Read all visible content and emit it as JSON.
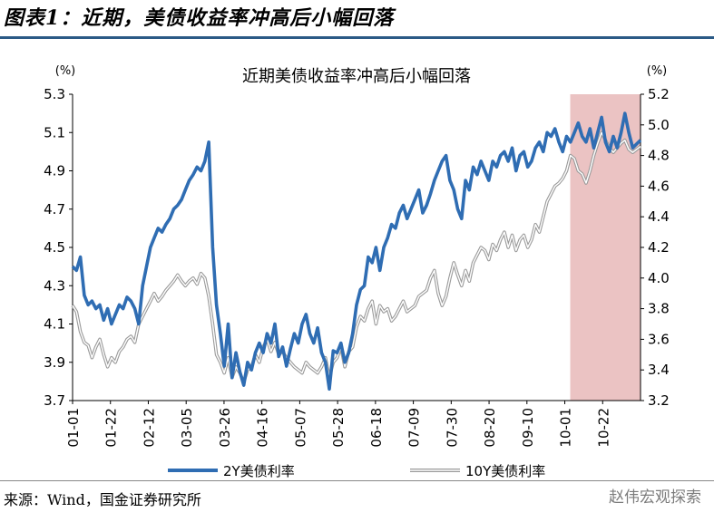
{
  "figure_title": "图表1：近期，美债收益率冲高后小幅回落",
  "source": "来源：Wind，国金证券研究所",
  "watermark": "赵伟宏观探索",
  "colors": {
    "series_2y": "#2f6db3",
    "series_10y": "#9a9a9a",
    "highlight": "#e8b9b9",
    "title_rule": "#2b5a86"
  },
  "chart_data": {
    "type": "line",
    "title": "近期美债收益率冲高后小幅回落",
    "left_axis": {
      "unit": "(%)",
      "ylim": [
        3.7,
        5.3
      ],
      "ticks": [
        "5.3",
        "5.1",
        "4.9",
        "4.7",
        "4.5",
        "4.3",
        "4.1",
        "3.9",
        "3.7"
      ]
    },
    "right_axis": {
      "unit": "(%)",
      "ylim": [
        3.2,
        5.2
      ],
      "ticks": [
        "5.2",
        "5.0",
        "4.8",
        "4.6",
        "4.4",
        "4.2",
        "4.0",
        "3.8",
        "3.6",
        "3.4",
        "3.2"
      ]
    },
    "x_ticks": [
      "01-01",
      "01-22",
      "02-12",
      "03-05",
      "03-26",
      "04-16",
      "05-07",
      "05-28",
      "06-18",
      "07-09",
      "07-30",
      "08-20",
      "09-10",
      "10-01",
      "10-22"
    ],
    "highlight": {
      "from": "10-01",
      "to": "10-31"
    },
    "legend_position": "bottom",
    "series": [
      {
        "name": "2Y美债利率",
        "axis": "left",
        "values": [
          4.4,
          4.38,
          4.45,
          4.25,
          4.2,
          4.22,
          4.18,
          4.2,
          4.12,
          4.18,
          4.1,
          4.15,
          4.2,
          4.18,
          4.24,
          4.22,
          4.18,
          4.1,
          4.3,
          4.4,
          4.5,
          4.55,
          4.6,
          4.58,
          4.62,
          4.65,
          4.7,
          4.72,
          4.75,
          4.8,
          4.85,
          4.88,
          4.92,
          4.9,
          4.95,
          5.05,
          4.5,
          4.2,
          4.05,
          3.88,
          4.1,
          3.82,
          3.95,
          3.85,
          3.78,
          3.9,
          3.86,
          3.95,
          4.0,
          3.95,
          4.05,
          4.0,
          4.1,
          3.93,
          3.98,
          3.88,
          3.97,
          4.05,
          4.0,
          4.1,
          4.15,
          4.05,
          4.0,
          4.08,
          3.95,
          3.9,
          3.76,
          3.96,
          3.95,
          4.0,
          3.9,
          3.95,
          4.05,
          4.2,
          4.28,
          4.3,
          4.45,
          4.42,
          4.5,
          4.38,
          4.5,
          4.55,
          4.62,
          4.6,
          4.68,
          4.72,
          4.65,
          4.7,
          4.75,
          4.8,
          4.68,
          4.72,
          4.78,
          4.85,
          4.9,
          4.95,
          4.98,
          4.85,
          4.8,
          4.7,
          4.65,
          4.85,
          4.8,
          4.92,
          4.88,
          4.95,
          4.9,
          4.85,
          4.95,
          4.92,
          4.98,
          5.0,
          4.95,
          5.02,
          4.9,
          4.98,
          5.0,
          4.92,
          4.95,
          5.02,
          5.05,
          5.0,
          5.1,
          5.08,
          5.12,
          5.05,
          5.0,
          5.08,
          5.05,
          5.1,
          5.15,
          5.08,
          5.05,
          5.12,
          5.02,
          5.1,
          5.18,
          5.05,
          5.0,
          5.08,
          5.02,
          5.1,
          5.2,
          5.1,
          5.02,
          5.04,
          5.06
        ]
      },
      {
        "name": "10Y美债利率",
        "axis": "right",
        "values": [
          3.82,
          3.78,
          3.65,
          3.58,
          3.56,
          3.48,
          3.55,
          3.6,
          3.5,
          3.42,
          3.48,
          3.45,
          3.52,
          3.55,
          3.6,
          3.62,
          3.58,
          3.7,
          3.75,
          3.8,
          3.85,
          3.9,
          3.85,
          3.88,
          3.92,
          3.95,
          3.98,
          4.02,
          3.98,
          3.95,
          3.98,
          4.0,
          3.96,
          4.03,
          4.0,
          3.88,
          3.7,
          3.5,
          3.45,
          3.38,
          3.48,
          3.35,
          3.42,
          3.38,
          3.32,
          3.4,
          3.42,
          3.5,
          3.45,
          3.55,
          3.6,
          3.52,
          3.58,
          3.5,
          3.52,
          3.48,
          3.45,
          3.42,
          3.4,
          3.38,
          3.45,
          3.42,
          3.4,
          3.38,
          3.42,
          3.48,
          3.35,
          3.45,
          3.48,
          3.55,
          3.42,
          3.52,
          3.55,
          3.68,
          3.75,
          3.72,
          3.8,
          3.85,
          3.7,
          3.82,
          3.78,
          3.8,
          3.72,
          3.75,
          3.8,
          3.85,
          3.78,
          3.8,
          3.82,
          3.88,
          3.9,
          3.92,
          4.0,
          4.05,
          3.9,
          3.82,
          3.88,
          4.0,
          4.1,
          4.02,
          3.95,
          4.05,
          3.98,
          4.1,
          4.15,
          4.2,
          4.18,
          4.12,
          4.22,
          4.18,
          4.25,
          4.3,
          4.2,
          4.28,
          4.18,
          4.25,
          4.28,
          4.2,
          4.25,
          4.35,
          4.3,
          4.4,
          4.5,
          4.55,
          4.6,
          4.62,
          4.65,
          4.7,
          4.8,
          4.78,
          4.7,
          4.68,
          4.62,
          4.7,
          4.8,
          4.88,
          4.95,
          4.9,
          4.85,
          4.82,
          4.85,
          4.88,
          4.9,
          4.84,
          4.82,
          4.84,
          4.86
        ]
      }
    ]
  }
}
